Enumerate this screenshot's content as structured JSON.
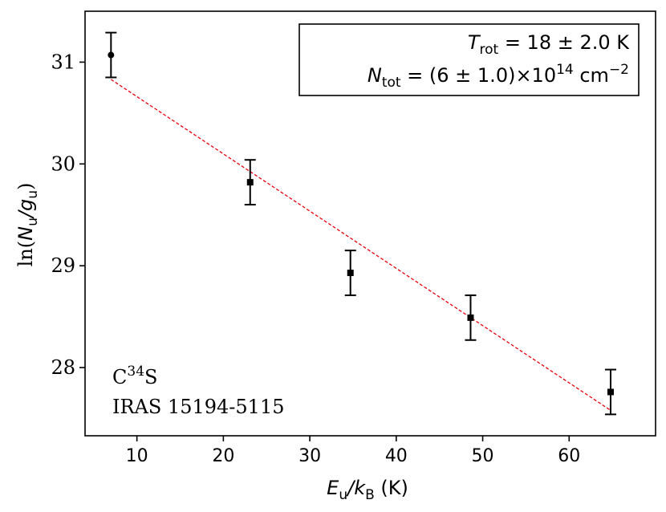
{
  "chart_data": {
    "type": "scatter",
    "xlabel": "E_u/k_B (K)",
    "xlabel_parts": {
      "var1": "E",
      "sub1": "u",
      "slash": "/",
      "var2": "k",
      "sub2": "B",
      "unit": " (K)"
    },
    "ylabel": "ln(N_u/g_u)",
    "ylabel_parts": {
      "prefix": "ln(",
      "var1": "N",
      "sub1": "u",
      "slash": "/",
      "var2": "g",
      "sub2": "u",
      "suffix": ")"
    },
    "xlim": [
      4,
      70
    ],
    "ylim": [
      27.33,
      31.5
    ],
    "xticks": [
      10,
      20,
      30,
      40,
      50,
      60
    ],
    "yticks": [
      28,
      29,
      30,
      31
    ],
    "grid": false,
    "points": [
      {
        "x": 7.0,
        "y": 31.07,
        "err": 0.22,
        "marker": "circle"
      },
      {
        "x": 23.1,
        "y": 29.82,
        "err": 0.22,
        "marker": "square"
      },
      {
        "x": 34.7,
        "y": 28.93,
        "err": 0.22,
        "marker": "square"
      },
      {
        "x": 48.6,
        "y": 28.49,
        "err": 0.22,
        "marker": "square"
      },
      {
        "x": 64.8,
        "y": 27.76,
        "err": 0.22,
        "marker": "square"
      }
    ],
    "fit_line": {
      "x": [
        7.0,
        64.8
      ],
      "y": [
        30.83,
        27.58
      ],
      "color": "#e8000b",
      "style": "dashed"
    },
    "legend_box": {
      "position": "top-right",
      "line1": {
        "var": "T",
        "sub": "rot",
        "rest": " = 18 ± 2.0 K"
      },
      "line2": {
        "var": "N",
        "sub": "tot",
        "rest": " = (6 ± 1.0)×10",
        "sup": "14",
        "unit": " cm",
        "unit_sup": "−2"
      }
    },
    "annotation": {
      "position": "bottom-left",
      "molecule": {
        "base": "C",
        "sup": "34",
        "rest": "S"
      },
      "source": "IRAS 15194-5115"
    },
    "colors": {
      "points": "#000000",
      "fit": "#e8000b"
    }
  }
}
